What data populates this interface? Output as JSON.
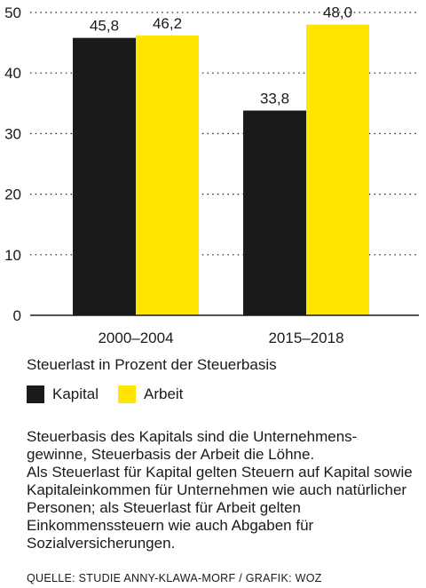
{
  "chart_data": {
    "type": "bar",
    "categories": [
      "2000–2004",
      "2015–2018"
    ],
    "series": [
      {
        "name": "Kapital",
        "values": [
          45.8,
          33.8
        ],
        "labels": [
          "45,8",
          "33,8"
        ],
        "color": "#1a1a1a"
      },
      {
        "name": "Arbeit",
        "values": [
          46.2,
          48.0
        ],
        "labels": [
          "46,2",
          "48,0"
        ],
        "color": "#ffe500"
      }
    ],
    "yticks": [
      0,
      10,
      20,
      30,
      40,
      50
    ],
    "ylim": [
      0,
      50
    ],
    "grid": "dotted horizontal",
    "title": "",
    "xlabel": "",
    "ylabel": ""
  },
  "subtitle": "Steuerlast in Prozent der Steuerbasis",
  "legend": {
    "items": [
      {
        "label": "Kapital",
        "color": "#1a1a1a"
      },
      {
        "label": "Arbeit",
        "color": "#ffe500"
      }
    ]
  },
  "note": {
    "paragraph1": "Steuerbasis des Kapitals sind die Unternehmens-gewinne, Steuerbasis der Arbeit die Löhne.",
    "paragraph2": "Als Steuerlast für Kapital gelten Steuern auf Kapital sowie Kapitaleinkommen für Unternehmen wie auch natürlicher Personen; als Steuerlast für Arbeit gelten Einkommenssteuern wie auch Abgaben für Sozialversicherungen."
  },
  "source": "QUELLE: STUDIE ANNY-KLAWA-MORF / GRAFIK: WOZ"
}
